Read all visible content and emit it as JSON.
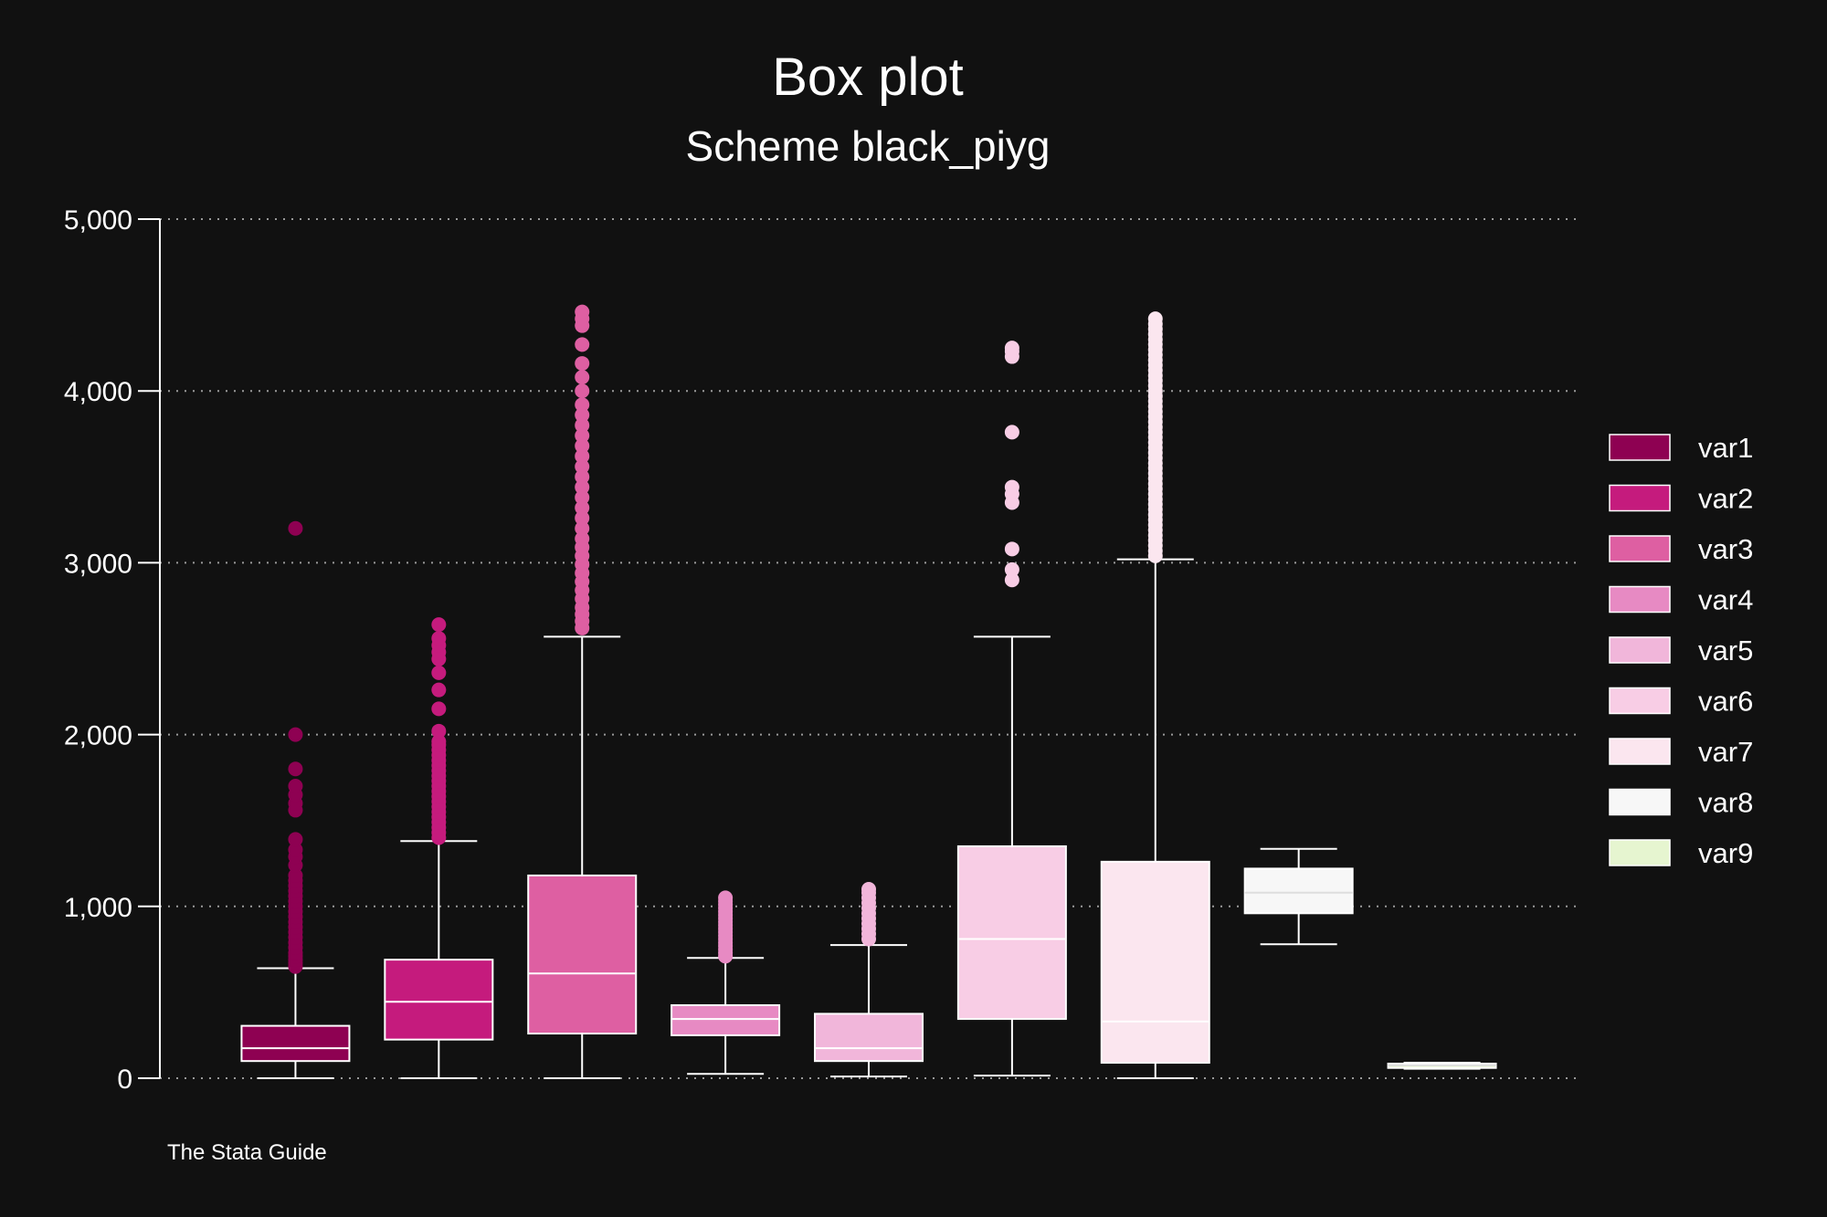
{
  "chart_data": {
    "type": "box",
    "title": "Box plot",
    "subtitle": "Scheme black_piyg",
    "note": "The Stata Guide",
    "ylim": [
      0,
      5000
    ],
    "yticks": [
      0,
      1000,
      2000,
      3000,
      4000,
      5000
    ],
    "ytick_labels": [
      "0",
      "1,000",
      "2,000",
      "3,000",
      "4,000",
      "5,000"
    ],
    "grid": true,
    "legend_position": "right",
    "series": [
      {
        "name": "var1",
        "color": "#8e0152",
        "whisker_low": 0,
        "q1": 100,
        "median": 175,
        "q3": 305,
        "whisker_high": 640,
        "outliers": [
          650,
          670,
          690,
          710,
          730,
          760,
          790,
          820,
          850,
          880,
          910,
          940,
          970,
          1000,
          1030,
          1060,
          1090,
          1120,
          1150,
          1180,
          1240,
          1290,
          1330,
          1390,
          1560,
          1600,
          1650,
          1700,
          1800,
          2000,
          3200
        ]
      },
      {
        "name": "var2",
        "color": "#c51b7d",
        "whisker_low": 0,
        "q1": 225,
        "median": 445,
        "q3": 690,
        "whisker_high": 1380,
        "outliers": [
          1400,
          1430,
          1460,
          1490,
          1520,
          1550,
          1580,
          1610,
          1640,
          1670,
          1700,
          1730,
          1760,
          1790,
          1820,
          1850,
          1880,
          1910,
          1940,
          1960,
          2020,
          2150,
          2260,
          2360,
          2440,
          2480,
          2520,
          2560,
          2640
        ]
      },
      {
        "name": "var3",
        "color": "#de5fa2",
        "whisker_low": 0,
        "q1": 260,
        "median": 610,
        "q3": 1180,
        "whisker_high": 2570,
        "outliers": [
          2620,
          2660,
          2700,
          2740,
          2790,
          2840,
          2890,
          2940,
          2990,
          3040,
          3090,
          3140,
          3200,
          3260,
          3320,
          3380,
          3440,
          3500,
          3560,
          3620,
          3680,
          3740,
          3800,
          3860,
          3920,
          4000,
          4080,
          4160,
          4270,
          4380,
          4420,
          4460
        ]
      },
      {
        "name": "var4",
        "color": "#e78ac3",
        "whisker_low": 25,
        "q1": 250,
        "median": 345,
        "q3": 425,
        "whisker_high": 700,
        "outliers": [
          710,
          730,
          750,
          770,
          790,
          810,
          830,
          850,
          870,
          890,
          910,
          930,
          950,
          970,
          990,
          1010,
          1030,
          1050
        ]
      },
      {
        "name": "var5",
        "color": "#f1b6da",
        "whisker_low": 10,
        "q1": 100,
        "median": 175,
        "q3": 375,
        "whisker_high": 775,
        "outliers": [
          810,
          840,
          870,
          900,
          930,
          960,
          990,
          1020,
          1050,
          1080,
          1100
        ]
      },
      {
        "name": "var6",
        "color": "#f8cde5",
        "whisker_low": 15,
        "q1": 345,
        "median": 810,
        "q3": 1350,
        "whisker_high": 2570,
        "outliers": [
          2900,
          2960,
          3080,
          3350,
          3400,
          3440,
          3760,
          4200,
          4230,
          4250
        ]
      },
      {
        "name": "var7",
        "color": "#fbe6ef",
        "whisker_low": 0,
        "q1": 90,
        "median": 330,
        "q3": 1260,
        "whisker_high": 3020,
        "outliers": [
          3040,
          3070,
          3100,
          3130,
          3160,
          3190,
          3220,
          3250,
          3280,
          3310,
          3340,
          3370,
          3400,
          3430,
          3460,
          3490,
          3520,
          3550,
          3580,
          3610,
          3640,
          3670,
          3700,
          3730,
          3760,
          3790,
          3820,
          3850,
          3880,
          3910,
          3940,
          3970,
          4000,
          4030,
          4060,
          4090,
          4120,
          4150,
          4180,
          4210,
          4240,
          4270,
          4300,
          4330,
          4360,
          4390,
          4420
        ]
      },
      {
        "name": "var8",
        "color": "#f7f7f7",
        "whisker_low": 780,
        "q1": 960,
        "median": 1080,
        "q3": 1220,
        "whisker_high": 1335,
        "outliers": []
      },
      {
        "name": "var9",
        "color": "#e6f5d0",
        "whisker_low": 55,
        "q1": 60,
        "median": 75,
        "q3": 85,
        "whisker_high": 90,
        "outliers": []
      }
    ]
  }
}
